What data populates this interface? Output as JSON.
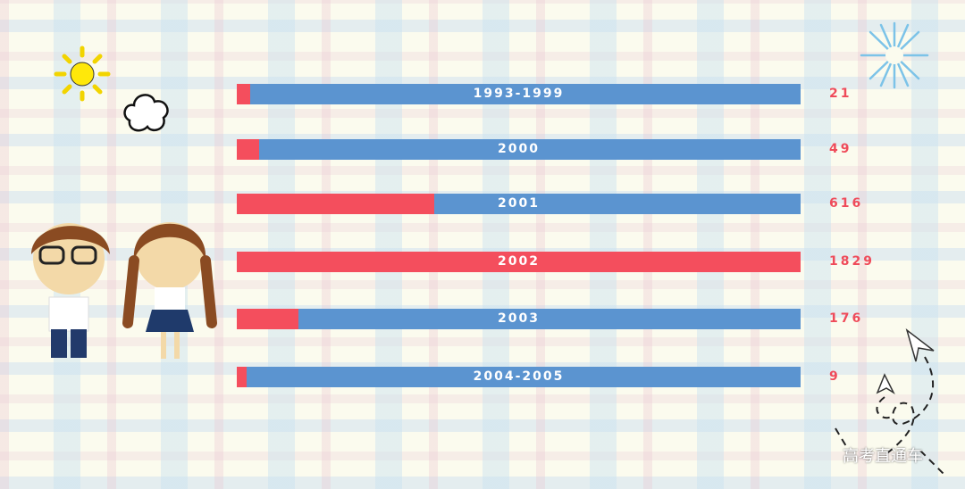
{
  "chart_data": {
    "type": "bar",
    "orientation": "horizontal",
    "categories": [
      "1993-1999",
      "2000",
      "2001",
      "2002",
      "2003",
      "2004-2005"
    ],
    "values": [
      21,
      49,
      616,
      1829,
      176,
      9
    ],
    "value_labels": [
      "21",
      "49",
      "616",
      "1829",
      "176",
      "9"
    ],
    "colors": {
      "fill": "#f44e5d",
      "track": "#5b94d0"
    }
  },
  "watermark": "高考直通车"
}
